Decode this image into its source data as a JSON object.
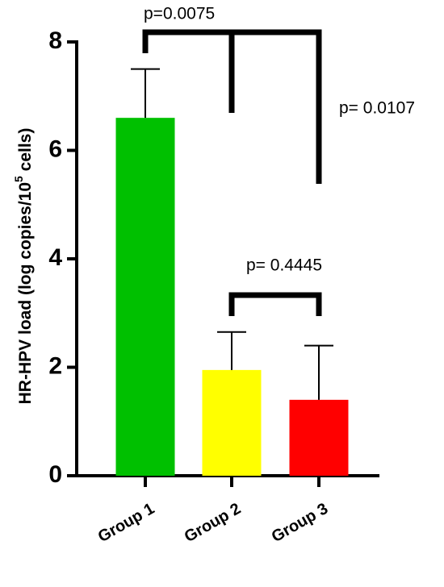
{
  "chart_data": {
    "type": "bar",
    "categories": [
      "Group 1",
      "Group 2",
      "Group 3"
    ],
    "values": [
      6.6,
      1.95,
      1.4
    ],
    "errors": [
      0.9,
      0.7,
      1.0
    ],
    "colors": [
      "#00c000",
      "#ffff00",
      "#ff0000"
    ],
    "ylabel": "HR-HPV load (log copies/10",
    "ylabel_sup": "5",
    "ylabel_end": " cells)",
    "ylim": [
      0,
      8
    ],
    "yticks": [
      0,
      2,
      4,
      6,
      8
    ],
    "annotations": [
      "p=0.0075",
      "p= 0.0107",
      "p= 0.4445"
    ]
  }
}
